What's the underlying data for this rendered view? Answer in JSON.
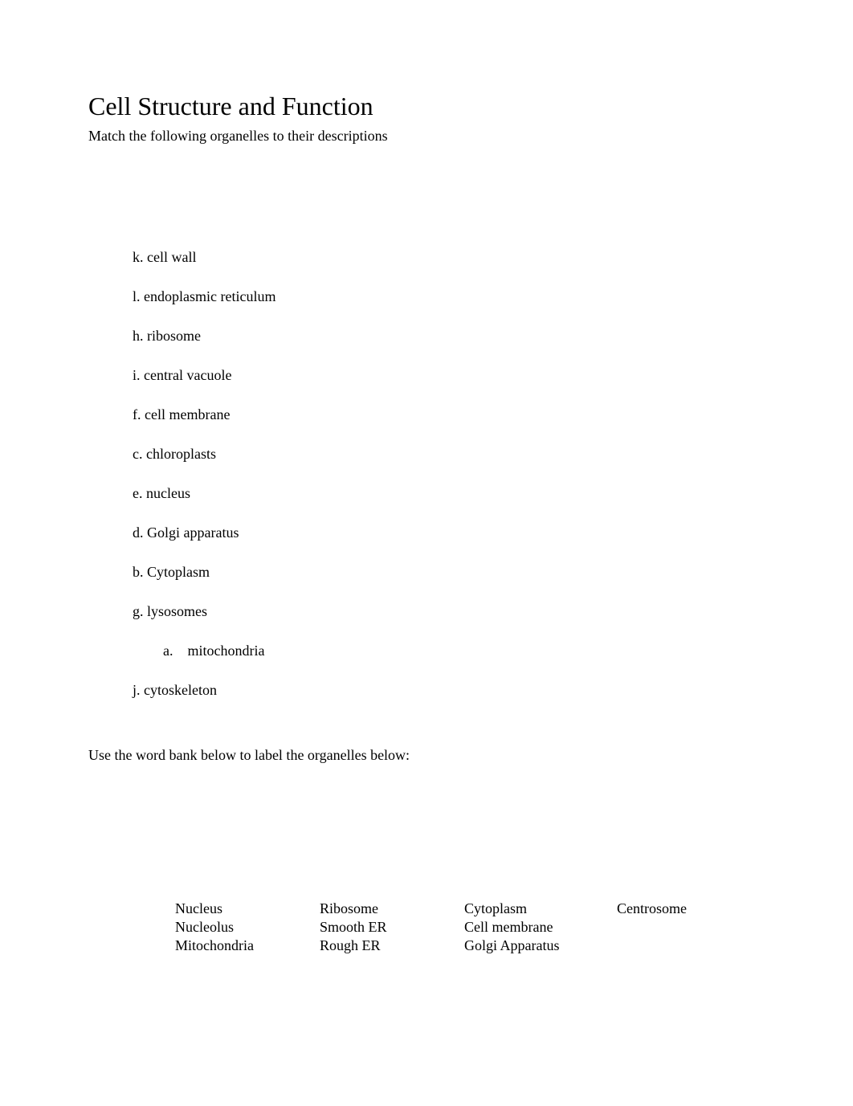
{
  "title": "Cell Structure and Function",
  "subtitle": "Match the following organelles to their descriptions",
  "items": [
    "k. cell wall",
    "l. endoplasmic reticulum",
    "h. ribosome",
    "i. central vacuole",
    "f. cell membrane",
    "c. chloroplasts",
    "e. nucleus",
    "d. Golgi apparatus",
    "b. Cytoplasm",
    "g. lysosomes"
  ],
  "indented_item": "a. mitochondria",
  "last_item": "j. cytoskeleton",
  "instruction": "Use the word bank below to label the organelles below:",
  "wordbank": {
    "r1c1": "Nucleus",
    "r1c2": "Ribosome",
    "r1c3": "Cytoplasm",
    "r1c4": "Centrosome",
    "r2c1": "Nucleolus",
    "r2c2": "Smooth ER",
    "r2c3": "Cell membrane",
    "r2c4": "",
    "r3c1": "Mitochondria",
    "r3c2": "Rough ER",
    "r3c3": "Golgi Apparatus",
    "r3c4": ""
  },
  "colors": {
    "background": "#ffffff",
    "text": "#000000"
  },
  "typography": {
    "title_fontsize": 32,
    "body_fontsize": 18,
    "font_family": "Times New Roman"
  }
}
